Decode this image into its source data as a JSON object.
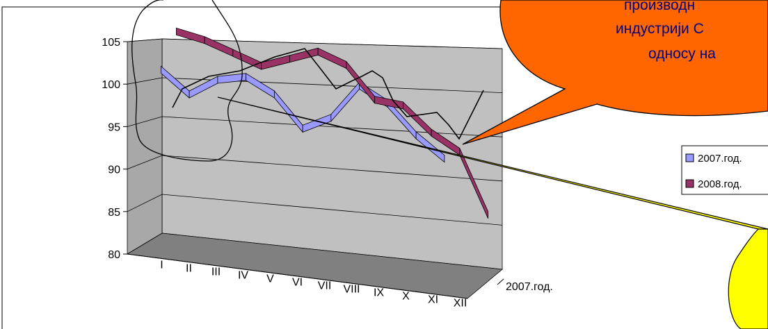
{
  "chart_data": {
    "type": "line",
    "categories": [
      "I",
      "II",
      "III",
      "IV",
      "V",
      "VI",
      "VII",
      "VIII",
      "IX",
      "X",
      "XI",
      "XII"
    ],
    "series": [
      {
        "name": "2007.год.",
        "color": "#9999ff",
        "values": [
          102,
          99,
          101,
          101.5,
          99.5,
          95.5,
          97,
          101,
          99,
          95.5,
          93,
          null
        ]
      },
      {
        "name": "2008.год.",
        "color": "#993366",
        "values": [
          106,
          105,
          103.5,
          102,
          103,
          104,
          102.5,
          98.5,
          98,
          95,
          93,
          86
        ]
      }
    ],
    "depth_axis_label": "2007.год.",
    "ylim": [
      80,
      105
    ],
    "yticks": [
      80,
      85,
      90,
      95,
      100,
      105
    ],
    "grid": true,
    "legend_position": "right",
    "title": "",
    "xlabel": "",
    "ylabel": ""
  },
  "callout": {
    "lines": [
      "производн",
      "индустрији С",
      "односу на"
    ],
    "fill": "#ff6600"
  },
  "pointer_fill": "#ffff00",
  "walls": {
    "back": "#c0c0c0",
    "floor": "#808080"
  }
}
